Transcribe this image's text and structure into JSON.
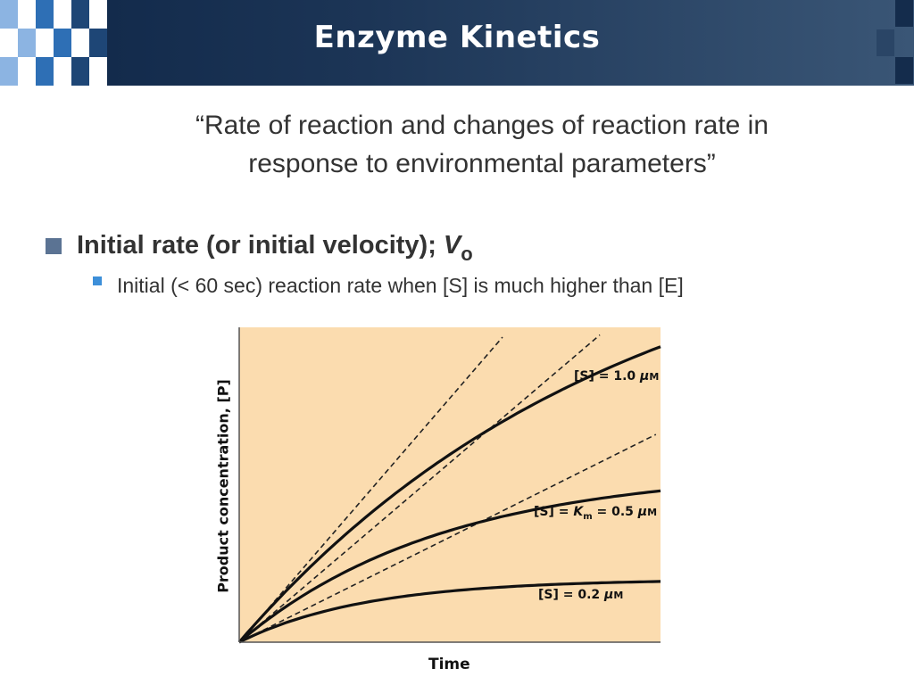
{
  "header": {
    "title": "Enzyme Kinetics",
    "colors": {
      "light": "#8cb4e2",
      "mid": "#2e6fb5",
      "dark": "#1e4676"
    }
  },
  "quote": {
    "line1": "“Rate of reaction and changes of reaction rate in",
    "line2": "response to environmental parameters”"
  },
  "bullets": [
    {
      "text": "Initial rate (or initial velocity); ",
      "symbol": "V",
      "subscript": "o",
      "sub_bullets": [
        {
          "text": "Initial (< 60 sec) reaction rate when [S] is much higher than [E]"
        }
      ]
    }
  ],
  "chart_data": {
    "type": "line",
    "title": "",
    "xlabel": "Time",
    "ylabel": "Product concentration, [P]",
    "xlim": [
      0,
      10
    ],
    "ylim": [
      0,
      10
    ],
    "grid": false,
    "background": "#fbdcaf",
    "series": [
      {
        "name": "[S] = 1.0 μM",
        "model": "Pmax*(1-exp(-k*t))",
        "Pmax": 14,
        "k": 0.111,
        "label_parts": [
          "[S] = 1.0 ",
          "μ",
          "M"
        ]
      },
      {
        "name": "[S] = Km = 0.5 μM",
        "model": "Pmax*(1-exp(-k*t))",
        "Pmax": 5.5,
        "k": 0.207,
        "label_parts": [
          "[S] = ",
          "K",
          "m",
          " = 0.5 ",
          "μ",
          "M"
        ]
      },
      {
        "name": "[S] = 0.2 μM",
        "model": "Pmax*(1-exp(-k*t))",
        "Pmax": 2.0,
        "k": 0.333,
        "label_parts": [
          "[S] = 0.2 ",
          "μ",
          "M"
        ]
      }
    ],
    "tangents": [
      {
        "name": "initial rate 1.0 μM",
        "slope": 1.55,
        "x_end": 6.25
      },
      {
        "name": "initial rate 0.5 μM",
        "slope": 1.14,
        "x_end": 8.56
      },
      {
        "name": "initial rate 0.2 μM",
        "slope": 0.667,
        "x_end": 9.89
      }
    ]
  }
}
